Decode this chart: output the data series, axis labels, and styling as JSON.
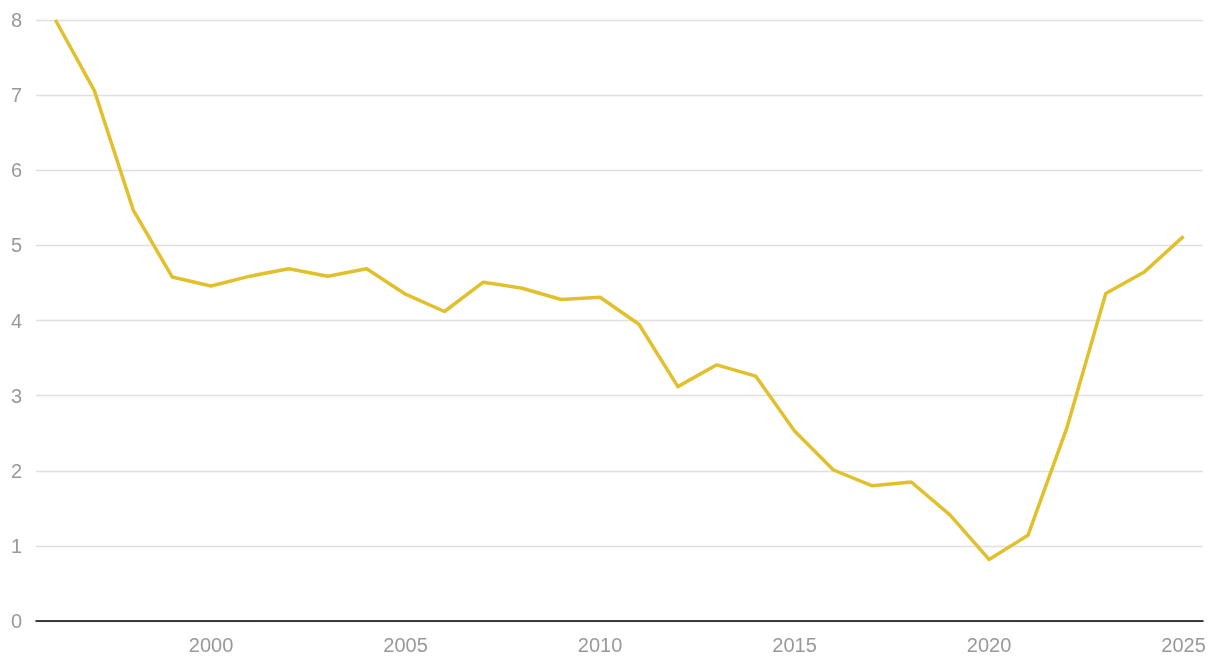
{
  "chart_data": {
    "type": "line",
    "x": [
      1996,
      1997,
      1998,
      1999,
      2000,
      2001,
      2002,
      2003,
      2004,
      2005,
      2006,
      2007,
      2008,
      2009,
      2010,
      2011,
      2012,
      2013,
      2014,
      2015,
      2016,
      2017,
      2018,
      2019,
      2020,
      2021,
      2022,
      2023,
      2024,
      2025
    ],
    "series": [
      {
        "color": "#e2c02c",
        "values": [
          8,
          7.06,
          5.47,
          4.58,
          4.46,
          4.59,
          4.69,
          4.59,
          4.69,
          4.35,
          4.12,
          4.51,
          4.43,
          4.28,
          4.31,
          3.95,
          3.12,
          3.41,
          3.26,
          2.53,
          2.01,
          1.8,
          1.85,
          1.41,
          0.82,
          1.14,
          2.57,
          4.36,
          4.65,
          5.12
        ]
      }
    ],
    "xlim": [
      1995.5,
      2025.5
    ],
    "xticks": [
      2000,
      2005,
      2010,
      2015,
      2020,
      2025
    ],
    "ylim": [
      0,
      8
    ],
    "yticks": [
      0,
      1,
      2,
      3,
      4,
      5,
      6,
      7,
      8
    ],
    "grid": "y",
    "marker": "none",
    "line_style": "solid"
  }
}
